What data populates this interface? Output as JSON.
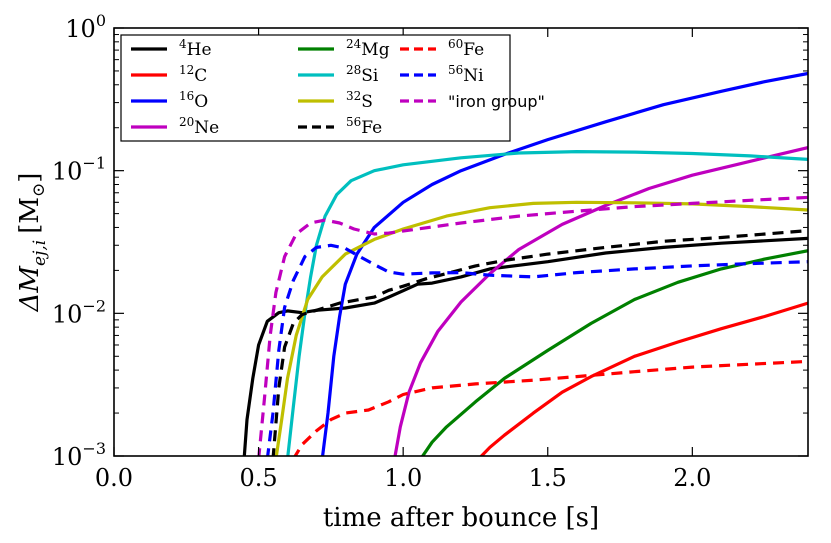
{
  "chart_data": {
    "type": "line",
    "title": "",
    "xlabel": "time after bounce [s]",
    "ylabel": "ΔM",
    "ylabel_sub": "ej,i",
    "ylabel_unit_open": "[M",
    "ylabel_unit_sub": "⊙",
    "ylabel_unit_close": "]",
    "xlim": [
      0.0,
      2.4
    ],
    "ylim": [
      0.001,
      1.0
    ],
    "yscale": "log",
    "grid": false,
    "legend_position": "top-left",
    "x_ticks": [
      {
        "value": 0.0,
        "label": "0.0"
      },
      {
        "value": 0.5,
        "label": "0.5"
      },
      {
        "value": 1.0,
        "label": "1.0"
      },
      {
        "value": 1.5,
        "label": "1.5"
      },
      {
        "value": 2.0,
        "label": "2.0"
      }
    ],
    "y_ticks": [
      {
        "value": 0.001,
        "base": "10",
        "exp": "−3"
      },
      {
        "value": 0.01,
        "base": "10",
        "exp": "−2"
      },
      {
        "value": 0.1,
        "base": "10",
        "exp": "−1"
      },
      {
        "value": 1.0,
        "base": "10",
        "exp": "0"
      }
    ],
    "series": [
      {
        "name": "4He",
        "mass": "4",
        "element": "He",
        "color": "#000000",
        "dash": "solid",
        "points": [
          [
            0.45,
            0.00095
          ],
          [
            0.46,
            0.0018
          ],
          [
            0.48,
            0.0035
          ],
          [
            0.5,
            0.006
          ],
          [
            0.53,
            0.0088
          ],
          [
            0.57,
            0.0101
          ],
          [
            0.6,
            0.0104
          ],
          [
            0.65,
            0.0101
          ],
          [
            0.7,
            0.0105
          ],
          [
            0.8,
            0.0109
          ],
          [
            0.9,
            0.0118
          ],
          [
            0.95,
            0.013
          ],
          [
            1.0,
            0.0144
          ],
          [
            1.05,
            0.016
          ],
          [
            1.1,
            0.0163
          ],
          [
            1.2,
            0.018
          ],
          [
            1.3,
            0.0205
          ],
          [
            1.5,
            0.023
          ],
          [
            1.7,
            0.0265
          ],
          [
            1.9,
            0.029
          ],
          [
            2.1,
            0.031
          ],
          [
            2.4,
            0.0335
          ]
        ]
      },
      {
        "name": "12C",
        "mass": "12",
        "element": "C",
        "color": "#ff0000",
        "dash": "solid",
        "points": [
          [
            1.26,
            0.00095
          ],
          [
            1.3,
            0.00115
          ],
          [
            1.35,
            0.0014
          ],
          [
            1.45,
            0.002
          ],
          [
            1.55,
            0.0028
          ],
          [
            1.65,
            0.0036
          ],
          [
            1.8,
            0.005
          ],
          [
            1.95,
            0.0063
          ],
          [
            2.1,
            0.0078
          ],
          [
            2.25,
            0.0095
          ],
          [
            2.4,
            0.0118
          ]
        ]
      },
      {
        "name": "16O",
        "mass": "16",
        "element": "O",
        "color": "#0000ff",
        "dash": "solid",
        "points": [
          [
            0.72,
            0.00095
          ],
          [
            0.74,
            0.002
          ],
          [
            0.76,
            0.005
          ],
          [
            0.78,
            0.0095
          ],
          [
            0.8,
            0.016
          ],
          [
            0.84,
            0.026
          ],
          [
            0.9,
            0.04
          ],
          [
            1.0,
            0.06
          ],
          [
            1.1,
            0.08
          ],
          [
            1.2,
            0.1
          ],
          [
            1.35,
            0.13
          ],
          [
            1.5,
            0.165
          ],
          [
            1.7,
            0.22
          ],
          [
            1.9,
            0.29
          ],
          [
            2.1,
            0.36
          ],
          [
            2.25,
            0.42
          ],
          [
            2.4,
            0.48
          ]
        ]
      },
      {
        "name": "20Ne",
        "mass": "20",
        "element": "Ne",
        "color": "#bf00bf",
        "dash": "solid",
        "points": [
          [
            0.97,
            0.00095
          ],
          [
            0.99,
            0.0016
          ],
          [
            1.02,
            0.0028
          ],
          [
            1.06,
            0.0045
          ],
          [
            1.12,
            0.0075
          ],
          [
            1.2,
            0.012
          ],
          [
            1.3,
            0.019
          ],
          [
            1.4,
            0.028
          ],
          [
            1.55,
            0.042
          ],
          [
            1.7,
            0.057
          ],
          [
            1.85,
            0.075
          ],
          [
            2.0,
            0.093
          ],
          [
            2.15,
            0.11
          ],
          [
            2.3,
            0.13
          ],
          [
            2.4,
            0.145
          ]
        ]
      },
      {
        "name": "24Mg",
        "mass": "24",
        "element": "Mg",
        "color": "#008000",
        "dash": "solid",
        "points": [
          [
            1.06,
            0.00095
          ],
          [
            1.1,
            0.00125
          ],
          [
            1.15,
            0.0016
          ],
          [
            1.25,
            0.0024
          ],
          [
            1.35,
            0.0035
          ],
          [
            1.5,
            0.0055
          ],
          [
            1.65,
            0.0085
          ],
          [
            1.8,
            0.0125
          ],
          [
            1.95,
            0.0165
          ],
          [
            2.1,
            0.0205
          ],
          [
            2.25,
            0.024
          ],
          [
            2.4,
            0.0275
          ]
        ]
      },
      {
        "name": "28Si",
        "mass": "28",
        "element": "Si",
        "color": "#00bfbf",
        "dash": "solid",
        "points": [
          [
            0.6,
            0.00095
          ],
          [
            0.62,
            0.0022
          ],
          [
            0.64,
            0.005
          ],
          [
            0.66,
            0.01
          ],
          [
            0.68,
            0.018
          ],
          [
            0.7,
            0.03
          ],
          [
            0.73,
            0.048
          ],
          [
            0.77,
            0.068
          ],
          [
            0.82,
            0.085
          ],
          [
            0.9,
            0.1
          ],
          [
            1.0,
            0.11
          ],
          [
            1.2,
            0.123
          ],
          [
            1.4,
            0.133
          ],
          [
            1.6,
            0.136
          ],
          [
            1.8,
            0.135
          ],
          [
            2.0,
            0.132
          ],
          [
            2.2,
            0.127
          ],
          [
            2.4,
            0.12
          ]
        ]
      },
      {
        "name": "32S",
        "mass": "32",
        "element": "S",
        "color": "#bfbf00",
        "dash": "solid",
        "points": [
          [
            0.56,
            0.00095
          ],
          [
            0.58,
            0.0018
          ],
          [
            0.6,
            0.0035
          ],
          [
            0.63,
            0.007
          ],
          [
            0.67,
            0.0125
          ],
          [
            0.72,
            0.018
          ],
          [
            0.8,
            0.026
          ],
          [
            0.9,
            0.033
          ],
          [
            1.0,
            0.039
          ],
          [
            1.15,
            0.048
          ],
          [
            1.3,
            0.055
          ],
          [
            1.45,
            0.059
          ],
          [
            1.6,
            0.06
          ],
          [
            1.8,
            0.0595
          ],
          [
            2.0,
            0.0585
          ],
          [
            2.2,
            0.056
          ],
          [
            2.4,
            0.053
          ]
        ]
      },
      {
        "name": "56Fe",
        "mass": "56",
        "element": "Fe",
        "color": "#000000",
        "dash": "dashed",
        "points": [
          [
            0.55,
            0.00095
          ],
          [
            0.57,
            0.003
          ],
          [
            0.59,
            0.0058
          ],
          [
            0.62,
            0.0085
          ],
          [
            0.65,
            0.0098
          ],
          [
            0.7,
            0.0105
          ],
          [
            0.78,
            0.0118
          ],
          [
            0.85,
            0.0125
          ],
          [
            0.9,
            0.013
          ],
          [
            0.95,
            0.0145
          ],
          [
            1.0,
            0.0155
          ],
          [
            1.08,
            0.0175
          ],
          [
            1.15,
            0.019
          ],
          [
            1.25,
            0.0215
          ],
          [
            1.35,
            0.0235
          ],
          [
            1.5,
            0.026
          ],
          [
            1.7,
            0.029
          ],
          [
            1.9,
            0.032
          ],
          [
            2.1,
            0.034
          ],
          [
            2.4,
            0.038
          ]
        ]
      },
      {
        "name": "60Fe",
        "mass": "60",
        "element": "Fe",
        "color": "#ff0000",
        "dash": "dashed",
        "points": [
          [
            0.62,
            0.00095
          ],
          [
            0.65,
            0.0012
          ],
          [
            0.7,
            0.0015
          ],
          [
            0.75,
            0.0018
          ],
          [
            0.8,
            0.002
          ],
          [
            0.88,
            0.0021
          ],
          [
            0.95,
            0.0024
          ],
          [
            1.0,
            0.0027
          ],
          [
            1.1,
            0.003
          ],
          [
            1.25,
            0.0032
          ],
          [
            1.45,
            0.0034
          ],
          [
            1.6,
            0.0036
          ],
          [
            1.8,
            0.0039
          ],
          [
            2.0,
            0.0042
          ],
          [
            2.2,
            0.0044
          ],
          [
            2.4,
            0.0046
          ]
        ]
      },
      {
        "name": "56Ni",
        "mass": "56",
        "element": "Ni",
        "color": "#0000ff",
        "dash": "dashed",
        "points": [
          [
            0.53,
            0.00095
          ],
          [
            0.55,
            0.002
          ],
          [
            0.57,
            0.0055
          ],
          [
            0.59,
            0.011
          ],
          [
            0.62,
            0.017
          ],
          [
            0.66,
            0.025
          ],
          [
            0.7,
            0.029
          ],
          [
            0.75,
            0.03
          ],
          [
            0.8,
            0.0285
          ],
          [
            0.85,
            0.025
          ],
          [
            0.9,
            0.022
          ],
          [
            0.95,
            0.0195
          ],
          [
            1.0,
            0.0188
          ],
          [
            1.1,
            0.0192
          ],
          [
            1.2,
            0.0193
          ],
          [
            1.3,
            0.0185
          ],
          [
            1.45,
            0.018
          ],
          [
            1.6,
            0.0193
          ],
          [
            1.8,
            0.0205
          ],
          [
            2.0,
            0.0215
          ],
          [
            2.2,
            0.0223
          ],
          [
            2.4,
            0.023
          ]
        ]
      },
      {
        "name": "\"iron group\"",
        "mass": "",
        "element": "\"iron group\"",
        "color": "#bf00bf",
        "dash": "dashed",
        "points": [
          [
            0.5,
            0.00095
          ],
          [
            0.52,
            0.0025
          ],
          [
            0.54,
            0.007
          ],
          [
            0.56,
            0.014
          ],
          [
            0.59,
            0.025
          ],
          [
            0.63,
            0.036
          ],
          [
            0.68,
            0.043
          ],
          [
            0.73,
            0.045
          ],
          [
            0.78,
            0.043
          ],
          [
            0.83,
            0.039
          ],
          [
            0.9,
            0.036
          ],
          [
            0.95,
            0.0365
          ],
          [
            1.05,
            0.039
          ],
          [
            1.2,
            0.043
          ],
          [
            1.4,
            0.048
          ],
          [
            1.6,
            0.052
          ],
          [
            1.8,
            0.056
          ],
          [
            2.0,
            0.059
          ],
          [
            2.2,
            0.062
          ],
          [
            2.4,
            0.065
          ]
        ]
      }
    ]
  }
}
